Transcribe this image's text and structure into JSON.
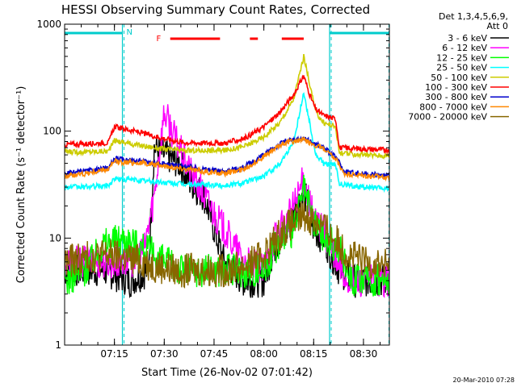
{
  "chart_data": {
    "type": "line",
    "title": "HESSI Observing Summary Count Rates, Corrected",
    "xlabel": "Start Time (26-Nov-02 07:01:42)",
    "ylabel": "Corrected Count Rate (s⁻¹ detector⁻¹)",
    "yscale": "log",
    "ylim": [
      1,
      1000
    ],
    "xlim_minutes": [
      7.0,
      8.63
    ],
    "y_ticks": [
      {
        "v": 1,
        "label": "1"
      },
      {
        "v": 10,
        "label": "10"
      },
      {
        "v": 100,
        "label": "100"
      },
      {
        "v": 1000,
        "label": "1000"
      }
    ],
    "x_ticks": [
      {
        "v": 7.25,
        "label": "07:15"
      },
      {
        "v": 7.5,
        "label": "07:30"
      },
      {
        "v": 7.75,
        "label": "07:45"
      },
      {
        "v": 8.0,
        "label": "08:00"
      },
      {
        "v": 8.25,
        "label": "08:15"
      },
      {
        "v": 8.5,
        "label": "08:30"
      }
    ],
    "legend_header": [
      "Det 1,3,4,5,6,9,",
      "Att 0"
    ],
    "legend_position": "right",
    "series": [
      {
        "name": "3 - 6 keV",
        "color": "#000000",
        "t": [
          7.0,
          7.2,
          7.33,
          7.42,
          7.45,
          7.5,
          7.58,
          7.62,
          7.7,
          7.8,
          7.9,
          8.0,
          8.05,
          8.12,
          8.2,
          8.25,
          8.3,
          8.38,
          8.45,
          8.63
        ],
        "v": [
          5,
          5,
          4,
          5,
          70,
          60,
          50,
          35,
          25,
          6,
          4,
          4,
          8,
          12,
          28,
          12,
          10,
          5,
          4,
          4
        ]
      },
      {
        "name": "6 - 12 keV",
        "color": "#ff00ff",
        "t": [
          7.0,
          7.2,
          7.33,
          7.4,
          7.45,
          7.5,
          7.55,
          7.62,
          7.7,
          7.8,
          7.9,
          8.0,
          8.05,
          8.12,
          8.2,
          8.25,
          8.3,
          8.36,
          8.42,
          8.63
        ],
        "v": [
          6,
          6,
          6,
          8,
          25,
          150,
          90,
          45,
          25,
          12,
          6,
          5,
          10,
          15,
          35,
          15,
          12,
          6,
          4,
          4
        ]
      },
      {
        "name": "12 - 25 keV",
        "color": "#00ff00",
        "t": [
          7.0,
          7.1,
          7.2,
          7.3,
          7.4,
          7.5,
          7.6,
          7.7,
          7.8,
          7.9,
          8.0,
          8.05,
          8.1,
          8.15,
          8.2,
          8.25,
          8.3,
          8.38,
          8.45,
          8.63
        ],
        "v": [
          4,
          5,
          9,
          10,
          8,
          6,
          5,
          5,
          5,
          5,
          5,
          8,
          10,
          12,
          28,
          14,
          10,
          8,
          4,
          4
        ]
      },
      {
        "name": "25 - 50 keV",
        "color": "#00ffff",
        "t": [
          7.0,
          7.1,
          7.22,
          7.25,
          7.35,
          7.5,
          7.6,
          7.8,
          7.9,
          8.0,
          8.08,
          8.15,
          8.2,
          8.23,
          8.26,
          8.3,
          8.36,
          8.38,
          8.5,
          8.63
        ],
        "v": [
          30,
          30,
          31,
          36,
          35,
          33,
          32,
          31,
          33,
          38,
          50,
          80,
          230,
          120,
          60,
          50,
          48,
          32,
          30,
          29
        ]
      },
      {
        "name": "50 - 100 keV",
        "color": "#cccc00",
        "t": [
          7.0,
          7.1,
          7.22,
          7.25,
          7.35,
          7.5,
          7.6,
          7.8,
          7.9,
          8.0,
          8.08,
          8.15,
          8.2,
          8.23,
          8.26,
          8.3,
          8.36,
          8.38,
          8.5,
          8.63
        ],
        "v": [
          64,
          64,
          65,
          82,
          75,
          68,
          66,
          66,
          72,
          88,
          120,
          200,
          500,
          280,
          150,
          120,
          110,
          62,
          60,
          59
        ]
      },
      {
        "name": "100 - 300 keV",
        "color": "#ff0000",
        "t": [
          7.0,
          7.1,
          7.22,
          7.25,
          7.35,
          7.5,
          7.6,
          7.8,
          7.9,
          8.0,
          8.08,
          8.15,
          8.2,
          8.23,
          8.26,
          8.3,
          8.36,
          8.38,
          8.5,
          8.63
        ],
        "v": [
          75,
          76,
          78,
          110,
          100,
          85,
          78,
          77,
          85,
          110,
          150,
          220,
          330,
          220,
          160,
          140,
          130,
          70,
          68,
          67
        ]
      },
      {
        "name": "300 - 800 keV",
        "color": "#0000cc",
        "t": [
          7.0,
          7.1,
          7.22,
          7.25,
          7.4,
          7.55,
          7.7,
          7.8,
          7.9,
          8.0,
          8.1,
          8.2,
          8.3,
          8.37,
          8.4,
          8.5,
          8.63
        ],
        "v": [
          40,
          42,
          45,
          55,
          52,
          48,
          44,
          42,
          46,
          60,
          80,
          85,
          70,
          55,
          42,
          40,
          38
        ]
      },
      {
        "name": "800 - 7000 keV",
        "color": "#ff8800",
        "t": [
          7.0,
          7.1,
          7.22,
          7.25,
          7.4,
          7.55,
          7.7,
          7.8,
          7.9,
          8.0,
          8.1,
          8.2,
          8.3,
          8.37,
          8.4,
          8.5,
          8.63
        ],
        "v": [
          38,
          40,
          44,
          52,
          50,
          46,
          42,
          40,
          44,
          58,
          78,
          83,
          68,
          52,
          40,
          38,
          37
        ]
      },
      {
        "name": "7000 - 20000 keV",
        "color": "#886600",
        "t": [
          7.0,
          7.1,
          7.2,
          7.3,
          7.4,
          7.45,
          7.55,
          7.7,
          7.8,
          7.9,
          8.0,
          8.1,
          8.2,
          8.28,
          8.35,
          8.42,
          8.5,
          8.63
        ],
        "v": [
          6,
          6.5,
          7,
          6.5,
          6,
          5.5,
          5,
          5,
          5,
          5.5,
          7,
          12,
          16,
          14,
          10,
          7,
          6,
          5.5
        ]
      }
    ],
    "markers": {
      "night_label": "N",
      "flare_label": "F",
      "night_intervals": [
        [
          7.0,
          7.29
        ],
        [
          8.33,
          8.63
        ]
      ],
      "flare_intervals": [
        [
          7.53,
          7.78
        ],
        [
          7.93,
          7.97
        ],
        [
          8.09,
          8.2
        ]
      ],
      "vlines_solid": [
        7.29,
        8.33
      ],
      "vlines_dashed": [
        7.29,
        8.33,
        8.62
      ]
    },
    "grid": false
  },
  "footer": {
    "timestamp": "20-Mar-2010 07:28"
  }
}
